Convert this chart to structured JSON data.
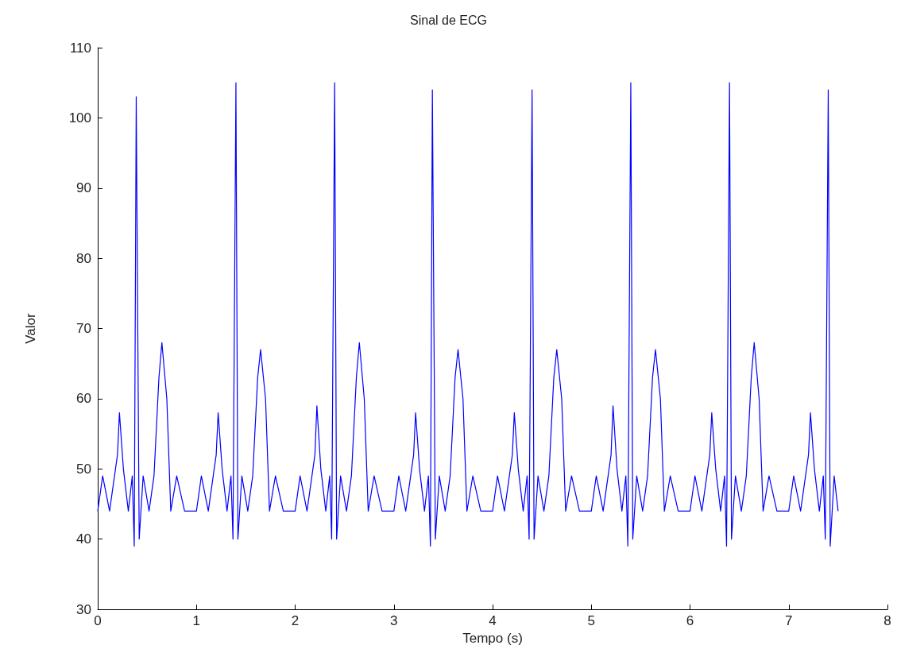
{
  "chart_data": {
    "type": "line",
    "title": "Sinal de ECG",
    "xlabel": "Tempo (s)",
    "ylabel": "Valor",
    "xlim": [
      0,
      8
    ],
    "xticks": [
      0,
      1,
      2,
      3,
      4,
      5,
      6,
      7,
      8
    ],
    "ylim": [
      30,
      110
    ],
    "yticks": [
      30,
      40,
      50,
      60,
      70,
      80,
      90,
      100,
      110
    ],
    "series": [
      {
        "color": "#0000ff",
        "x": [
          0,
          0.05,
          0.12,
          0.17,
          0.2,
          0.22,
          0.26,
          0.31,
          0.35,
          0.37,
          0.39,
          0.42,
          0.46,
          0.52,
          0.57,
          0.62,
          0.65,
          0.7,
          0.74,
          0.8,
          0.88,
          1,
          1.05,
          1.12,
          1.17,
          1.2,
          1.22,
          1.26,
          1.31,
          1.35,
          1.37,
          1.4,
          1.42,
          1.46,
          1.52,
          1.57,
          1.62,
          1.65,
          1.7,
          1.74,
          1.8,
          1.88,
          2,
          2.05,
          2.12,
          2.17,
          2.2,
          2.22,
          2.26,
          2.31,
          2.35,
          2.37,
          2.4,
          2.42,
          2.46,
          2.52,
          2.57,
          2.62,
          2.65,
          2.7,
          2.74,
          2.8,
          2.88,
          3,
          3.05,
          3.12,
          3.17,
          3.2,
          3.22,
          3.26,
          3.31,
          3.35,
          3.37,
          3.39,
          3.42,
          3.46,
          3.52,
          3.57,
          3.62,
          3.65,
          3.7,
          3.74,
          3.8,
          3.88,
          4,
          4.05,
          4.12,
          4.17,
          4.2,
          4.22,
          4.26,
          4.31,
          4.35,
          4.37,
          4.4,
          4.42,
          4.46,
          4.52,
          4.57,
          4.62,
          4.65,
          4.7,
          4.74,
          4.8,
          4.88,
          5,
          5.05,
          5.12,
          5.17,
          5.2,
          5.22,
          5.26,
          5.31,
          5.35,
          5.37,
          5.4,
          5.42,
          5.46,
          5.52,
          5.57,
          5.62,
          5.65,
          5.7,
          5.74,
          5.8,
          5.88,
          6,
          6.05,
          6.12,
          6.17,
          6.2,
          6.22,
          6.26,
          6.31,
          6.35,
          6.37,
          6.4,
          6.42,
          6.46,
          6.52,
          6.57,
          6.62,
          6.65,
          6.7,
          6.74,
          6.8,
          6.88,
          7,
          7.05,
          7.12,
          7.17,
          7.2,
          7.22,
          7.26,
          7.31,
          7.35,
          7.37,
          7.4,
          7.42,
          7.46,
          7.5
        ],
        "values": [
          44,
          49,
          44,
          49,
          52,
          58,
          50,
          44,
          49,
          39,
          103,
          40,
          49,
          44,
          49,
          63,
          68,
          60,
          44,
          49,
          44,
          44,
          49,
          44,
          49,
          52,
          58,
          50,
          44,
          49,
          40,
          105,
          40,
          49,
          44,
          49,
          63,
          67,
          60,
          44,
          49,
          44,
          44,
          49,
          44,
          49,
          52,
          59,
          50,
          44,
          49,
          40,
          105,
          40,
          49,
          44,
          49,
          63,
          68,
          60,
          44,
          49,
          44,
          44,
          49,
          44,
          49,
          52,
          58,
          50,
          44,
          49,
          39,
          104,
          40,
          49,
          44,
          49,
          63,
          67,
          60,
          44,
          49,
          44,
          44,
          49,
          44,
          49,
          52,
          58,
          50,
          44,
          49,
          40,
          104,
          40,
          49,
          44,
          49,
          63,
          67,
          60,
          44,
          49,
          44,
          44,
          49,
          44,
          49,
          52,
          59,
          50,
          44,
          49,
          39,
          105,
          40,
          49,
          44,
          49,
          63,
          67,
          60,
          44,
          49,
          44,
          44,
          49,
          44,
          49,
          52,
          58,
          50,
          44,
          49,
          39,
          105,
          40,
          49,
          44,
          49,
          63,
          68,
          60,
          44,
          49,
          44,
          44,
          49,
          44,
          49,
          52,
          58,
          50,
          44,
          49,
          40,
          104,
          39,
          49,
          44
        ]
      }
    ]
  }
}
